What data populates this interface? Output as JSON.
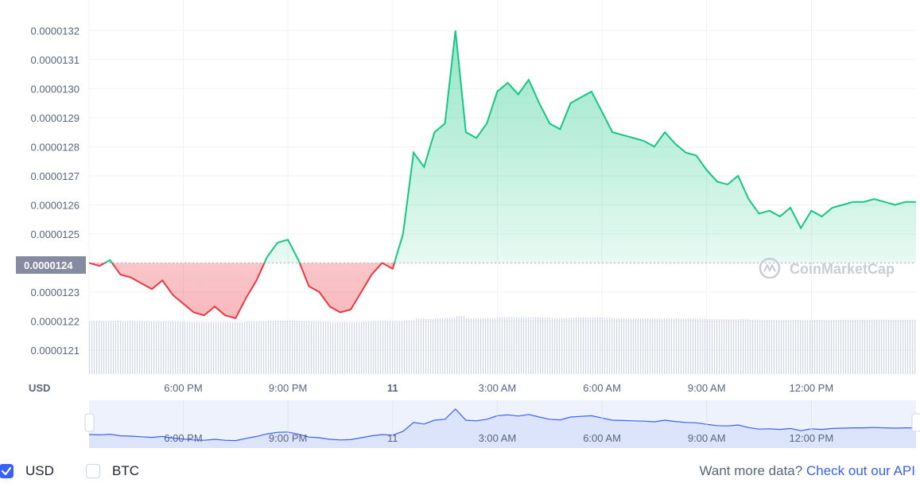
{
  "chart_data": {
    "type": "area",
    "currency_label": "USD",
    "current_price_label": "0.0000124",
    "watermark": "CoinMarketCap",
    "y_ticks": [
      "0.0000132",
      "0.0000131",
      "0.0000130",
      "0.0000129",
      "0.0000128",
      "0.0000127",
      "0.0000126",
      "0.0000125",
      "0.0000123",
      "0.0000122",
      "0.0000121"
    ],
    "y_tick_values": [
      13.2,
      13.1,
      13.0,
      12.9,
      12.8,
      12.7,
      12.6,
      12.5,
      12.3,
      12.2,
      12.1
    ],
    "ylim": [
      12.1,
      13.25
    ],
    "y_scale_note": "values in units of 1e-6 USD",
    "baseline": 12.4,
    "x_ticks": [
      "6:00 PM",
      "9:00 PM",
      "11",
      "3:00 AM",
      "6:00 AM",
      "9:00 AM",
      "12:00 PM"
    ],
    "x_tick_hours": [
      18,
      21,
      24,
      27,
      30,
      33,
      36
    ],
    "xlim_hours": [
      15.3,
      39.0
    ],
    "series": [
      {
        "x": [
          15.3,
          15.6,
          15.9,
          16.2,
          16.5,
          16.8,
          17.1,
          17.4,
          17.7,
          18.0,
          18.3,
          18.6,
          18.9,
          19.2,
          19.5,
          19.8,
          20.1,
          20.4,
          20.7,
          21.0,
          21.3,
          21.6,
          21.9,
          22.2,
          22.5,
          22.8,
          23.1,
          23.4,
          23.7,
          24.0,
          24.3,
          24.6,
          24.9,
          25.2,
          25.5,
          25.8,
          26.1,
          26.4,
          26.7,
          27.0,
          27.3,
          27.6,
          27.9,
          28.2,
          28.5,
          28.8,
          29.1,
          29.4,
          29.7,
          30.0,
          30.3,
          30.6,
          30.9,
          31.2,
          31.5,
          31.8,
          32.1,
          32.4,
          32.7,
          33.0,
          33.3,
          33.6,
          33.9,
          34.2,
          34.5,
          34.8,
          35.1,
          35.4,
          35.7,
          36.0,
          36.3,
          36.6,
          36.9,
          37.2,
          37.5,
          37.8,
          38.1,
          38.4,
          38.7,
          39.0
        ],
        "values": [
          12.4,
          12.39,
          12.41,
          12.36,
          12.35,
          12.33,
          12.31,
          12.34,
          12.29,
          12.26,
          12.23,
          12.22,
          12.25,
          12.22,
          12.21,
          12.28,
          12.34,
          12.42,
          12.47,
          12.48,
          12.41,
          12.32,
          12.3,
          12.25,
          12.23,
          12.24,
          12.3,
          12.36,
          12.4,
          12.38,
          12.5,
          12.78,
          12.73,
          12.85,
          12.88,
          13.2,
          12.85,
          12.83,
          12.88,
          12.99,
          13.02,
          12.98,
          13.03,
          12.95,
          12.88,
          12.86,
          12.95,
          12.97,
          12.99,
          12.92,
          12.85,
          12.84,
          12.83,
          12.82,
          12.8,
          12.85,
          12.81,
          12.78,
          12.77,
          12.72,
          12.68,
          12.67,
          12.7,
          12.62,
          12.57,
          12.58,
          12.56,
          12.59,
          12.52,
          12.58,
          12.56,
          12.59,
          12.6,
          12.61,
          12.61,
          12.62,
          12.61,
          12.6,
          12.61,
          12.61
        ]
      }
    ],
    "grid": true,
    "legend": "none",
    "colors": {
      "up": "#16c784",
      "down": "#ea3943",
      "nav_line": "#3861fb",
      "nav_fill": "#dbe4fb",
      "volume": "#cfd6e4"
    },
    "navigator_ticks": [
      "6:00 PM",
      "9:00 PM",
      "11",
      "3:00 AM",
      "6:00 AM",
      "9:00 AM",
      "12:00 PM"
    ]
  },
  "footer": {
    "usd_label": "USD",
    "btc_label": "BTC",
    "more_data_text": "Want more data?",
    "api_link_text": "Check out our API"
  }
}
